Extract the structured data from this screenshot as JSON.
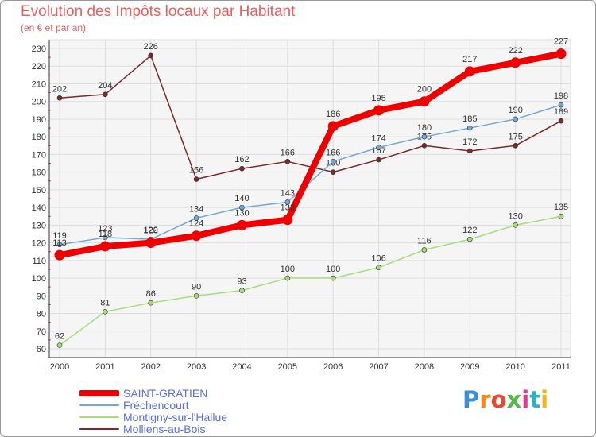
{
  "title": "Evolution des Impôts locaux par Habitant",
  "subtitle": "(en € et par an)",
  "brand": "Proxiti",
  "chart_data": {
    "type": "line",
    "title": "Evolution des Impôts locaux par Habitant",
    "subtitle": "(en € et par an)",
    "categories": [
      "2000",
      "2001",
      "2002",
      "2003",
      "2004",
      "2005",
      "2006",
      "2007",
      "2008",
      "2009",
      "2010",
      "2011"
    ],
    "ylim": [
      60,
      230
    ],
    "yticks": [
      60,
      70,
      80,
      90,
      100,
      110,
      120,
      130,
      140,
      150,
      160,
      170,
      180,
      190,
      200,
      210,
      220,
      230
    ],
    "grid": true,
    "legend_position": "bottom-left",
    "series": [
      {
        "name": "Molliens-au-Bois",
        "color": "#7a2a2a",
        "values": [
          202,
          204,
          226,
          156,
          162,
          166,
          160,
          167,
          175,
          172,
          175,
          189
        ]
      },
      {
        "name": "Montigny-sur-l'Hallue",
        "color": "#a6dd7a",
        "values": [
          62,
          81,
          86,
          90,
          93,
          100,
          100,
          106,
          116,
          122,
          130,
          135
        ]
      },
      {
        "name": "Fréchencourt",
        "color": "#74a7d4",
        "values": [
          119,
          123,
          122,
          134,
          140,
          143,
          166,
          174,
          180,
          185,
          190,
          198
        ]
      },
      {
        "name": "SAINT-GRATIEN",
        "color": "#ee0000",
        "values": [
          113,
          118,
          120,
          124,
          130,
          133,
          186,
          195,
          200,
          217,
          222,
          227
        ]
      }
    ],
    "legend_order": [
      "SAINT-GRATIEN",
      "Fréchencourt",
      "Montigny-sur-l'Hallue",
      "Molliens-au-Bois"
    ]
  },
  "logo_colors": [
    "#3a8fd6",
    "#f28a1c",
    "#e64a2e",
    "#56b947",
    "#e23a8a",
    "#2bb2c8",
    "#f1b51c"
  ]
}
